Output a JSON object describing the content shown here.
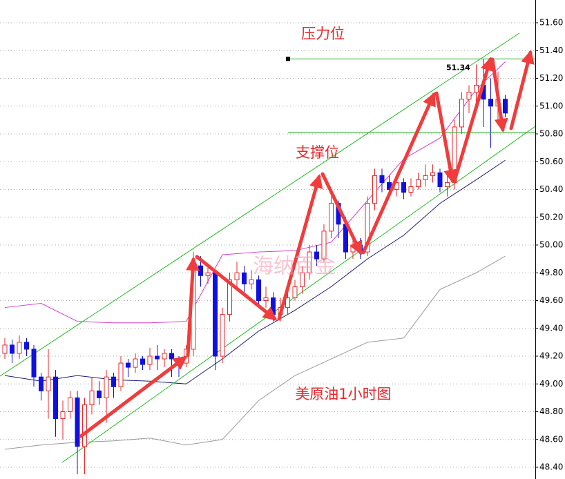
{
  "chart_data": {
    "type": "candlestick",
    "annotations": {
      "resistance": "压力位",
      "support": "支撑位",
      "chart_name": "美原油1小时图",
      "watermark": "海纳百金"
    },
    "resistance_level": 51.34,
    "support_level": 50.81,
    "ylim": [
      48.4,
      51.6
    ],
    "yticks": [
      {
        "value": 48.4,
        "label": "48.40"
      },
      {
        "value": 48.6,
        "label": "48.60"
      },
      {
        "value": 48.8,
        "label": "48.80"
      },
      {
        "value": 49.0,
        "label": "49.00"
      },
      {
        "value": 49.2,
        "label": "49.20"
      },
      {
        "value": 49.4,
        "label": "49.40"
      },
      {
        "value": 49.6,
        "label": "49.60"
      },
      {
        "value": 49.8,
        "label": "49.80"
      },
      {
        "value": 50.0,
        "label": "50.00"
      },
      {
        "value": 50.2,
        "label": "50.20"
      },
      {
        "value": 50.4,
        "label": "50.40"
      },
      {
        "value": 50.6,
        "label": "50.60"
      },
      {
        "value": 50.8,
        "label": "50.80"
      },
      {
        "value": 51.0,
        "label": "51.00"
      },
      {
        "value": 51.2,
        "label": "51.20"
      },
      {
        "value": 51.4,
        "label": "51.40"
      },
      {
        "value": 51.6,
        "label": "51.60"
      }
    ],
    "grid": true,
    "up_color": "#e8262a",
    "down_color": "#1010e0",
    "open": [
      49.22,
      49.28,
      49.22,
      49.3,
      49.25,
      49.05,
      48.95,
      49.05,
      48.75,
      48.8,
      48.9,
      48.55,
      48.85,
      48.95,
      48.9,
      49.05,
      48.98,
      49.15,
      49.12,
      49.18,
      49.14,
      49.2,
      49.18,
      49.22,
      49.18,
      49.15,
      49.25,
      49.85,
      49.78,
      49.8,
      49.2,
      49.5,
      49.75,
      49.8,
      49.72,
      49.75,
      49.6,
      49.62,
      49.5,
      49.55,
      49.62,
      49.7,
      49.8,
      49.95,
      49.9,
      50.1,
      50.3,
      50.15,
      49.95,
      50.0,
      49.95,
      50.3,
      50.5,
      50.45,
      50.4,
      50.45,
      50.38,
      50.42,
      50.47,
      50.5,
      50.52,
      50.42,
      50.45,
      50.85,
      51.05,
      51.1,
      51.15,
      51.05,
      51.0,
      51.05
    ],
    "high": [
      49.33,
      49.32,
      49.35,
      49.33,
      49.28,
      49.08,
      49.25,
      49.1,
      48.88,
      48.95,
      48.95,
      48.9,
      49.05,
      49.02,
      49.1,
      49.08,
      49.2,
      49.18,
      49.22,
      49.2,
      49.26,
      49.28,
      49.25,
      49.25,
      49.2,
      49.28,
      49.95,
      49.92,
      49.85,
      49.82,
      49.55,
      49.8,
      49.88,
      49.85,
      49.82,
      49.78,
      49.7,
      49.66,
      49.62,
      49.68,
      49.75,
      49.85,
      50.0,
      50.0,
      50.15,
      50.35,
      50.32,
      50.2,
      50.05,
      50.05,
      50.35,
      50.55,
      50.55,
      50.5,
      50.5,
      50.48,
      50.48,
      50.52,
      50.58,
      50.58,
      50.55,
      50.5,
      50.9,
      51.1,
      51.15,
      51.3,
      51.34,
      51.2,
      51.25,
      51.08
    ],
    "low": [
      49.18,
      49.15,
      49.18,
      49.2,
      48.98,
      48.88,
      48.75,
      48.62,
      48.6,
      48.75,
      48.35,
      48.35,
      48.78,
      48.85,
      48.72,
      48.9,
      48.95,
      49.05,
      49.08,
      49.1,
      49.1,
      49.1,
      49.12,
      49.05,
      49.05,
      49.12,
      49.2,
      49.7,
      49.72,
      49.1,
      49.15,
      49.45,
      49.7,
      49.65,
      49.68,
      49.55,
      49.55,
      49.45,
      49.45,
      49.5,
      49.6,
      49.65,
      49.75,
      49.85,
      49.88,
      50.05,
      50.05,
      49.9,
      49.9,
      49.9,
      49.92,
      50.25,
      50.38,
      50.35,
      50.35,
      50.33,
      50.35,
      50.4,
      50.42,
      50.45,
      50.38,
      50.35,
      50.4,
      50.8,
      50.95,
      51.0,
      50.85,
      50.7,
      50.88,
      50.92
    ],
    "close": [
      49.28,
      49.22,
      49.3,
      49.25,
      49.05,
      48.95,
      49.05,
      48.75,
      48.8,
      48.9,
      48.55,
      48.85,
      48.95,
      48.9,
      49.05,
      48.98,
      49.15,
      49.12,
      49.18,
      49.14,
      49.2,
      49.18,
      49.22,
      49.18,
      49.15,
      49.25,
      49.85,
      49.78,
      49.8,
      49.2,
      49.5,
      49.75,
      49.8,
      49.72,
      49.75,
      49.6,
      49.62,
      49.5,
      49.55,
      49.62,
      49.7,
      49.8,
      49.95,
      49.9,
      50.1,
      50.3,
      50.15,
      49.95,
      50.0,
      49.95,
      50.3,
      50.5,
      50.45,
      50.4,
      50.45,
      50.38,
      50.42,
      50.47,
      50.5,
      50.52,
      50.42,
      50.45,
      50.85,
      51.05,
      51.1,
      51.15,
      51.05,
      51.0,
      51.05,
      50.95
    ],
    "band_x": [
      0,
      5,
      10,
      15,
      20,
      25,
      30,
      35,
      40,
      45,
      50,
      55,
      60,
      65,
      69
    ],
    "bands": [
      {
        "color": "#d23cd2",
        "values": [
          49.55,
          49.58,
          49.45,
          49.44,
          49.44,
          49.45,
          49.93,
          49.95,
          49.96,
          50.02,
          50.32,
          50.62,
          50.77,
          51.12,
          51.32
        ]
      },
      {
        "color": "#1a1a6e",
        "values": [
          49.06,
          49.02,
          49.06,
          49.03,
          49.02,
          49.0,
          49.18,
          49.38,
          49.53,
          49.7,
          49.9,
          50.07,
          50.3,
          50.47,
          50.61
        ]
      },
      {
        "color": "#999999",
        "values": [
          48.53,
          48.56,
          48.58,
          48.59,
          48.61,
          48.56,
          48.6,
          48.88,
          49.06,
          49.18,
          49.3,
          49.33,
          49.68,
          49.8,
          49.92
        ]
      }
    ]
  }
}
